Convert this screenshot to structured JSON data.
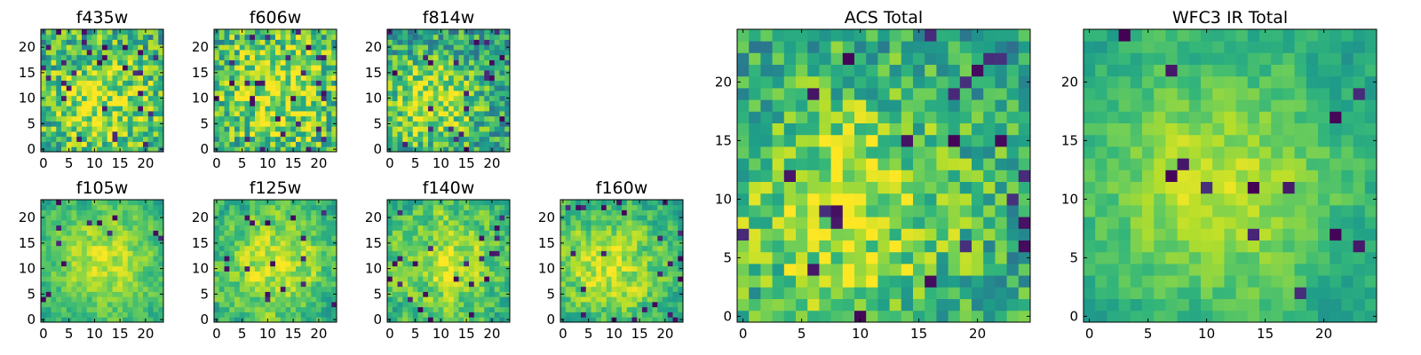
{
  "chart_data": [
    {
      "type": "heatmap",
      "title": "f435w",
      "xticks": [
        0,
        5,
        10,
        15,
        20
      ],
      "yticks": [
        0,
        5,
        10,
        15,
        20
      ],
      "grid_size": [
        24,
        24
      ],
      "colormap": "viridis",
      "seed": 11,
      "smooth": 0,
      "noise": 0.55,
      "bright_center": [
        11,
        9
      ],
      "bright_spread": 9,
      "dark_fraction": 0.05
    },
    {
      "type": "heatmap",
      "title": "f606w",
      "xticks": [
        0,
        5,
        10,
        15,
        20
      ],
      "yticks": [
        0,
        5,
        10,
        15,
        20
      ],
      "grid_size": [
        24,
        24
      ],
      "colormap": "viridis",
      "seed": 23,
      "smooth": 0,
      "noise": 0.55,
      "bright_center": [
        12,
        12
      ],
      "bright_spread": 10,
      "dark_fraction": 0.05
    },
    {
      "type": "heatmap",
      "title": "f814w",
      "xticks": [
        0,
        5,
        10,
        15,
        20
      ],
      "yticks": [
        0,
        5,
        10,
        15,
        20
      ],
      "grid_size": [
        24,
        24
      ],
      "colormap": "viridis",
      "seed": 37,
      "smooth": 0,
      "noise": 0.5,
      "bright_center": [
        8,
        9
      ],
      "bright_spread": 7,
      "dark_fraction": 0.04
    },
    {
      "type": "heatmap",
      "title": "ACS Total",
      "xticks": [
        0,
        5,
        10,
        15,
        20
      ],
      "yticks": [
        0,
        5,
        10,
        15,
        20
      ],
      "grid_size": [
        25,
        25
      ],
      "colormap": "viridis",
      "seed": 51,
      "smooth": 0,
      "noise": 0.45,
      "bright_center": [
        9,
        9
      ],
      "bright_spread": 8,
      "dark_fraction": 0.04
    },
    {
      "type": "heatmap",
      "title": "f105w",
      "xticks": [
        0,
        5,
        10,
        15,
        20
      ],
      "yticks": [
        0,
        5,
        10,
        15,
        20
      ],
      "grid_size": [
        24,
        24
      ],
      "colormap": "viridis",
      "seed": 61,
      "smooth": 1,
      "noise": 0.35,
      "bright_center": [
        12,
        12
      ],
      "bright_spread": 9,
      "dark_fraction": 0.02
    },
    {
      "type": "heatmap",
      "title": "f125w",
      "xticks": [
        0,
        5,
        10,
        15,
        20
      ],
      "yticks": [
        0,
        5,
        10,
        15,
        20
      ],
      "grid_size": [
        24,
        24
      ],
      "colormap": "viridis",
      "seed": 73,
      "smooth": 1,
      "noise": 0.45,
      "bright_center": [
        12,
        11
      ],
      "bright_spread": 9,
      "dark_fraction": 0.03
    },
    {
      "type": "heatmap",
      "title": "f140w",
      "xticks": [
        0,
        5,
        10,
        15,
        20
      ],
      "yticks": [
        0,
        5,
        10,
        15,
        20
      ],
      "grid_size": [
        24,
        24
      ],
      "colormap": "viridis",
      "seed": 89,
      "smooth": 1,
      "noise": 0.5,
      "bright_center": [
        11,
        11
      ],
      "bright_spread": 9,
      "dark_fraction": 0.04
    },
    {
      "type": "heatmap",
      "title": "f160w",
      "xticks": [
        0,
        5,
        10,
        15,
        20
      ],
      "yticks": [
        0,
        5,
        10,
        15,
        20
      ],
      "grid_size": [
        24,
        24
      ],
      "colormap": "viridis",
      "seed": 97,
      "smooth": 1,
      "noise": 0.45,
      "bright_center": [
        9,
        10
      ],
      "bright_spread": 9,
      "dark_fraction": 0.04
    },
    {
      "type": "heatmap",
      "title": "WFC3 IR Total",
      "xticks": [
        0,
        5,
        10,
        15,
        20
      ],
      "yticks": [
        0,
        5,
        10,
        15,
        20
      ],
      "grid_size": [
        25,
        25
      ],
      "colormap": "viridis",
      "seed": 131,
      "smooth": 1,
      "noise": 0.3,
      "bright_center": [
        11,
        11
      ],
      "bright_spread": 8,
      "dark_fraction": 0.02
    }
  ]
}
